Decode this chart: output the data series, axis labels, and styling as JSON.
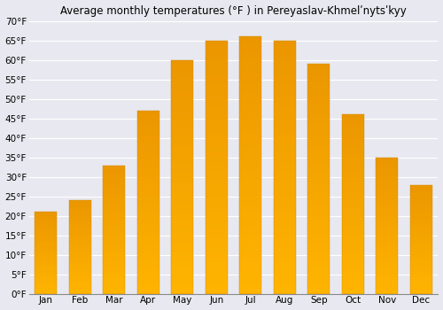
{
  "title": "Average monthly temperatures (°F ) in Pereyaslav-Khmelʹnytsʹkyy",
  "months": [
    "Jan",
    "Feb",
    "Mar",
    "Apr",
    "May",
    "Jun",
    "Jul",
    "Aug",
    "Sep",
    "Oct",
    "Nov",
    "Dec"
  ],
  "values": [
    21,
    24,
    33,
    47,
    60,
    65,
    66,
    65,
    59,
    46,
    35,
    28
  ],
  "bar_color": "#FFAA00",
  "bar_color_light": "#FFCC55",
  "background_color": "#E8E8F0",
  "grid_color": "#FFFFFF",
  "ylim": [
    0,
    70
  ],
  "yticks": [
    0,
    5,
    10,
    15,
    20,
    25,
    30,
    35,
    40,
    45,
    50,
    55,
    60,
    65,
    70
  ],
  "ytick_labels": [
    "0°F",
    "5°F",
    "10°F",
    "15°F",
    "20°F",
    "25°F",
    "30°F",
    "35°F",
    "40°F",
    "45°F",
    "50°F",
    "55°F",
    "60°F",
    "65°F",
    "70°F"
  ],
  "title_fontsize": 8.5,
  "tick_fontsize": 7.5,
  "bar_width": 0.65,
  "figsize": [
    5.0,
    3.5
  ],
  "dpi": 100
}
